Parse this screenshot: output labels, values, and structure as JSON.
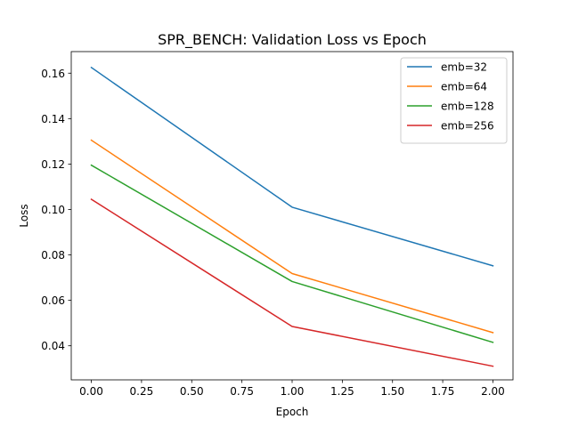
{
  "chart_data": {
    "type": "line",
    "title": "SPR_BENCH: Validation Loss vs Epoch",
    "xlabel": "Epoch",
    "ylabel": "Loss",
    "x": [
      0,
      1,
      2
    ],
    "xlim": [
      -0.1,
      2.1
    ],
    "ylim": [
      0.025,
      0.1695
    ],
    "xticks": [
      "0.00",
      "0.25",
      "0.50",
      "0.75",
      "1.00",
      "1.25",
      "1.50",
      "1.75",
      "2.00"
    ],
    "yticks": [
      "0.04",
      "0.06",
      "0.08",
      "0.10",
      "0.12",
      "0.14",
      "0.16"
    ],
    "grid": false,
    "legend_position": "top-right",
    "series": [
      {
        "name": "emb=32",
        "color": "#1f77b4",
        "values": [
          0.1625,
          0.101,
          0.0752
        ]
      },
      {
        "name": "emb=64",
        "color": "#ff7f0e",
        "values": [
          0.1305,
          0.0718,
          0.0458
        ]
      },
      {
        "name": "emb=128",
        "color": "#2ca02c",
        "values": [
          0.1195,
          0.0683,
          0.0415
        ]
      },
      {
        "name": "emb=256",
        "color": "#d62728",
        "values": [
          0.1045,
          0.0485,
          0.031
        ]
      }
    ]
  }
}
